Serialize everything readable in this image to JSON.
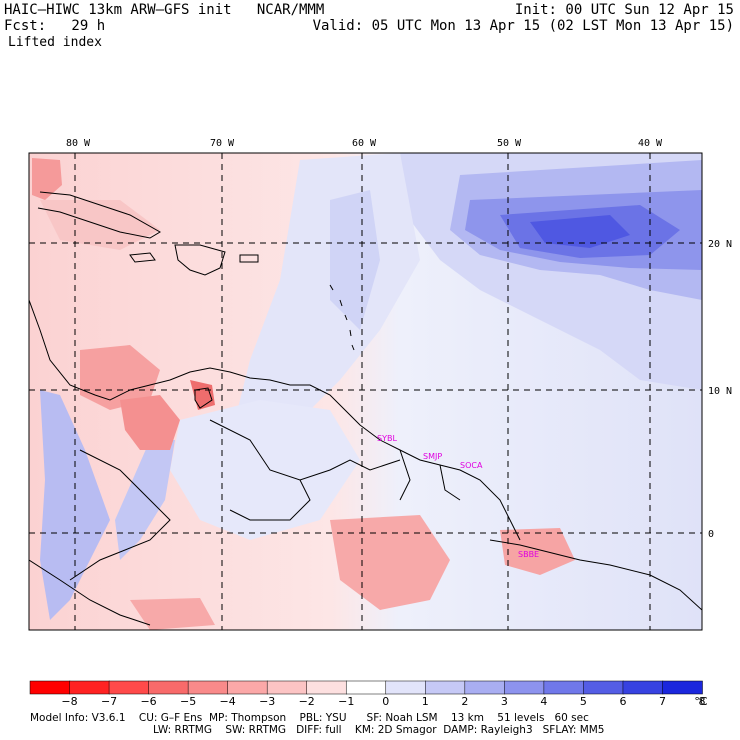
{
  "header": {
    "title": "HAIC–HIWC 13km ARW–GFS init   NCAR/MMM",
    "init": "Init: 00 UTC Sun 12 Apr 15",
    "fcst": "Fcst:   29 h",
    "valid": "Valid: 05 UTC Mon 13 Apr 15 (02 LST Mon 13 Apr 15)",
    "field": "Lifted index"
  },
  "map": {
    "lon_labels": [
      "80 W",
      "70 W",
      "60 W",
      "50 W",
      "40 W"
    ],
    "lat_labels": [
      "20 N",
      "10 N",
      "0"
    ],
    "stations": [
      "SYBL",
      "SMJP",
      "SOCA",
      "SBBE"
    ]
  },
  "colorbar": {
    "labels": [
      "−8",
      "−7",
      "−6",
      "−5",
      "−4",
      "−3",
      "−2",
      "−1",
      "0",
      "1",
      "2",
      "3",
      "4",
      "5",
      "6",
      "7",
      "8"
    ],
    "unit": "°C",
    "colors": [
      "#ff0000",
      "#ff2222",
      "#ff4a4a",
      "#f86a6a",
      "#f98a8a",
      "#fba8a8",
      "#fcc4c4",
      "#fde0e0",
      "#ffffff",
      "#e2e4fa",
      "#c6c9f6",
      "#a9aef2",
      "#8d93ee",
      "#7078ea",
      "#545de5",
      "#3742e1",
      "#1b27dd"
    ]
  },
  "footer": {
    "line1": "Model Info: V3.6.1    CU: G–F Ens  MP: Thompson    PBL: YSU      SF: Noah LSM    13 km    51 levels   60 sec",
    "line2": "LW: RRTMG    SW: RRTMG   DIFF: full    KM: 2D Smagor  DAMP: Rayleigh3   SFLAY: MM5"
  }
}
